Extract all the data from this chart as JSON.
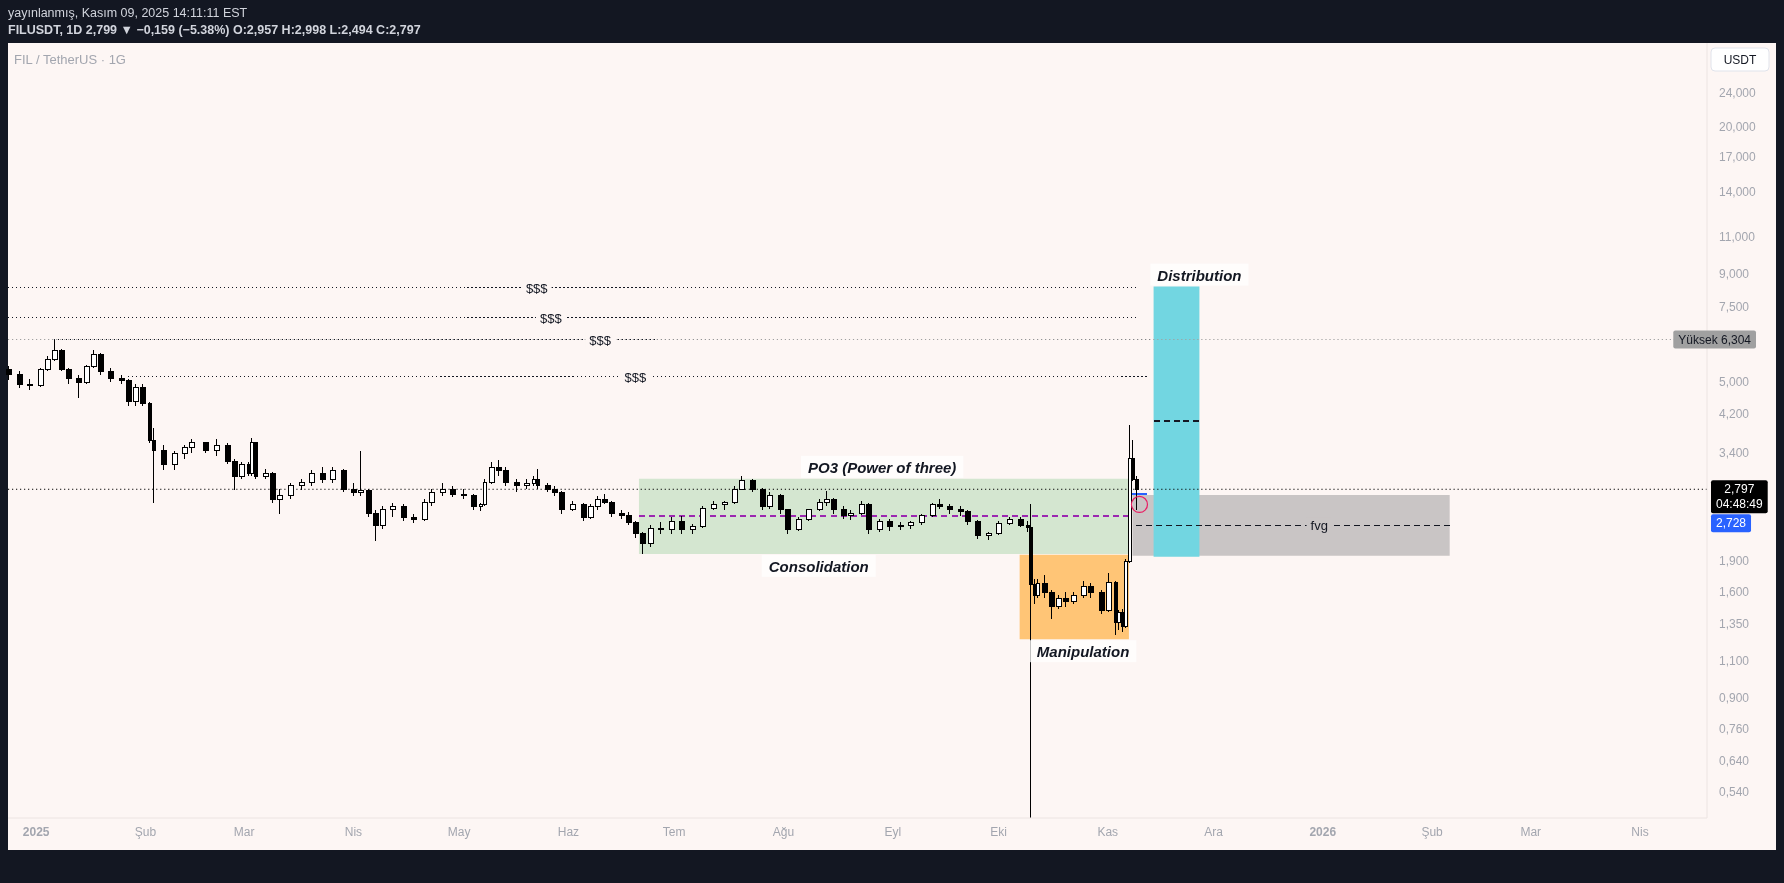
{
  "chart_data": {
    "type": "candlestick",
    "title": "FIL / TetherUS · 1G",
    "subtitle": "FILUSDT, 1D 2,799 ▼ −0,159 (−5.38%) O:2,957 H:2,998 L:2,494 C:2,797",
    "ylabel": "USDT",
    "color": "#000000",
    "log": true,
    "xlim": [
      "2024-12-24",
      "2026-04-20"
    ],
    "xticks": [
      {
        "value": "2025-01-01",
        "label": "2025"
      },
      {
        "value": "2025-02-01",
        "label": "Şub"
      },
      {
        "value": "2025-03-01",
        "label": "Mar"
      },
      {
        "value": "2025-04-01",
        "label": "Nis"
      },
      {
        "value": "2025-05-01",
        "label": "May"
      },
      {
        "value": "2025-06-01",
        "label": "Haz"
      },
      {
        "value": "2025-07-01",
        "label": "Tem"
      },
      {
        "value": "2025-08-01",
        "label": "Ağu"
      },
      {
        "value": "2025-09-01",
        "label": "Eyl"
      },
      {
        "value": "2025-10-01",
        "label": "Eki"
      },
      {
        "value": "2025-11-01",
        "label": "Kas"
      },
      {
        "value": "2025-12-01",
        "label": "Ara"
      },
      {
        "value": "2026-01-01",
        "label": "2026"
      },
      {
        "value": "2026-02-01",
        "label": "Şub"
      },
      {
        "value": "2026-03-01",
        "label": "Mar"
      },
      {
        "value": "2026-04-01",
        "label": "Nis"
      }
    ],
    "ylim": [
      0.47,
      31.5
    ],
    "yticks": [
      {
        "value": 0.54,
        "label": "0,540"
      },
      {
        "value": 0.64,
        "label": "0,640"
      },
      {
        "value": 0.76,
        "label": "0,760"
      },
      {
        "value": 0.9,
        "label": "0,900"
      },
      {
        "value": 1.1,
        "label": "1,100"
      },
      {
        "value": 1.35,
        "label": "1,350"
      },
      {
        "value": 1.6,
        "label": "1,600"
      },
      {
        "value": 1.9,
        "label": "1,900"
      },
      {
        "value": 3.4,
        "label": "3,400"
      },
      {
        "value": 4.2,
        "label": "4,200"
      },
      {
        "value": 5,
        "label": "5,000"
      },
      {
        "value": 7.5,
        "label": "7,500"
      },
      {
        "value": 9,
        "label": "9,000"
      },
      {
        "value": 11,
        "label": "11,000"
      },
      {
        "value": 14,
        "label": "14,000"
      },
      {
        "value": 17,
        "label": "17,000"
      },
      {
        "value": 20,
        "label": "20,000"
      },
      {
        "value": 24,
        "label": "24,000"
      }
    ],
    "x": [
      "2024-12-24",
      "2024-12-27",
      "2024-12-30",
      "2025-01-02",
      "2025-01-04",
      "2025-01-06",
      "2025-01-08",
      "2025-01-10",
      "2025-01-13",
      "2025-01-15",
      "2025-01-17",
      "2025-01-19",
      "2025-01-22",
      "2025-01-25",
      "2025-01-27",
      "2025-01-29",
      "2025-01-31",
      "2025-02-02",
      "2025-02-03",
      "2025-02-06",
      "2025-02-09",
      "2025-02-12",
      "2025-02-14",
      "2025-02-18",
      "2025-02-21",
      "2025-02-24",
      "2025-02-26",
      "2025-02-28",
      "2025-03-02",
      "2025-03-03",
      "2025-03-04",
      "2025-03-07",
      "2025-03-09",
      "2025-03-11",
      "2025-03-14",
      "2025-03-17",
      "2025-03-20",
      "2025-03-23",
      "2025-03-26",
      "2025-03-29",
      "2025-04-01",
      "2025-04-03",
      "2025-04-05",
      "2025-04-07",
      "2025-04-09",
      "2025-04-12",
      "2025-04-15",
      "2025-04-18",
      "2025-04-21",
      "2025-04-23",
      "2025-04-26",
      "2025-04-29",
      "2025-05-02",
      "2025-05-05",
      "2025-05-07",
      "2025-05-08",
      "2025-05-10",
      "2025-05-12",
      "2025-05-14",
      "2025-05-17",
      "2025-05-20",
      "2025-05-22",
      "2025-05-23",
      "2025-05-26",
      "2025-05-28",
      "2025-05-30",
      "2025-06-02",
      "2025-06-05",
      "2025-06-07",
      "2025-06-09",
      "2025-06-11",
      "2025-06-13",
      "2025-06-16",
      "2025-06-18",
      "2025-06-20",
      "2025-06-22",
      "2025-06-24",
      "2025-06-27",
      "2025-06-30",
      "2025-07-03",
      "2025-07-06",
      "2025-07-09",
      "2025-07-12",
      "2025-07-15",
      "2025-07-18",
      "2025-07-20",
      "2025-07-23",
      "2025-07-26",
      "2025-07-28",
      "2025-07-31",
      "2025-08-02",
      "2025-08-05",
      "2025-08-08",
      "2025-08-11",
      "2025-08-13",
      "2025-08-15",
      "2025-08-18",
      "2025-08-20",
      "2025-08-23",
      "2025-08-25",
      "2025-08-28",
      "2025-08-31",
      "2025-09-03",
      "2025-09-06",
      "2025-09-09",
      "2025-09-12",
      "2025-09-14",
      "2025-09-17",
      "2025-09-20",
      "2025-09-22",
      "2025-09-25",
      "2025-09-28",
      "2025-10-01",
      "2025-10-04",
      "2025-10-07",
      "2025-10-09",
      "2025-10-10",
      "2025-10-11",
      "2025-10-12",
      "2025-10-14",
      "2025-10-16",
      "2025-10-18",
      "2025-10-20",
      "2025-10-22",
      "2025-10-25",
      "2025-10-27",
      "2025-10-30",
      "2025-11-01",
      "2025-11-03",
      "2025-11-04",
      "2025-11-05",
      "2025-11-06",
      "2025-11-07",
      "2025-11-08",
      "2025-11-09"
    ],
    "ohlc": [
      [
        5.35,
        5.45,
        5.05,
        5.2
      ],
      [
        5.2,
        5.3,
        4.85,
        4.95
      ],
      [
        4.95,
        5.1,
        4.8,
        4.9
      ],
      [
        4.9,
        5.4,
        4.88,
        5.35
      ],
      [
        5.35,
        5.75,
        5.3,
        5.65
      ],
      [
        5.65,
        6.304,
        5.6,
        5.95
      ],
      [
        5.95,
        6.0,
        5.3,
        5.35
      ],
      [
        5.35,
        5.4,
        4.95,
        5.1
      ],
      [
        5.1,
        5.2,
        4.6,
        5.0
      ],
      [
        5.0,
        5.5,
        4.95,
        5.45
      ],
      [
        5.45,
        5.95,
        5.4,
        5.8
      ],
      [
        5.8,
        5.85,
        5.2,
        5.3
      ],
      [
        5.3,
        5.4,
        5.0,
        5.1
      ],
      [
        5.1,
        5.2,
        4.95,
        5.05
      ],
      [
        5.05,
        5.1,
        4.4,
        4.5
      ],
      [
        4.5,
        4.95,
        4.4,
        4.85
      ],
      [
        4.85,
        4.95,
        4.4,
        4.45
      ],
      [
        4.45,
        4.5,
        3.6,
        3.65
      ],
      [
        3.65,
        3.9,
        2.6,
        3.45
      ],
      [
        3.45,
        3.55,
        3.1,
        3.2
      ],
      [
        3.2,
        3.45,
        3.1,
        3.4
      ],
      [
        3.4,
        3.55,
        3.3,
        3.5
      ],
      [
        3.5,
        3.67,
        3.4,
        3.6
      ],
      [
        3.6,
        3.62,
        3.4,
        3.45
      ],
      [
        3.45,
        3.67,
        3.35,
        3.55
      ],
      [
        3.55,
        3.6,
        3.2,
        3.25
      ],
      [
        3.25,
        3.3,
        2.78,
        3.0
      ],
      [
        3.0,
        3.25,
        2.95,
        3.2
      ],
      [
        3.2,
        3.25,
        3.0,
        3.05
      ],
      [
        3.05,
        3.7,
        3.0,
        3.6
      ],
      [
        3.6,
        3.62,
        2.95,
        3.0
      ],
      [
        3.0,
        3.12,
        2.95,
        3.05
      ],
      [
        3.05,
        3.08,
        2.6,
        2.65
      ],
      [
        2.65,
        2.8,
        2.45,
        2.7
      ],
      [
        2.7,
        2.9,
        2.65,
        2.85
      ],
      [
        2.85,
        2.95,
        2.78,
        2.9
      ],
      [
        2.9,
        3.1,
        2.85,
        3.05
      ],
      [
        3.05,
        3.15,
        2.9,
        2.95
      ],
      [
        2.95,
        3.15,
        2.9,
        3.1
      ],
      [
        3.1,
        3.12,
        2.75,
        2.8
      ],
      [
        2.8,
        2.9,
        2.7,
        2.75
      ],
      [
        2.75,
        3.44,
        2.7,
        2.78
      ],
      [
        2.78,
        2.8,
        2.4,
        2.45
      ],
      [
        2.45,
        2.5,
        2.11,
        2.3
      ],
      [
        2.3,
        2.55,
        2.25,
        2.5
      ],
      [
        2.5,
        2.6,
        2.4,
        2.55
      ],
      [
        2.55,
        2.58,
        2.35,
        2.4
      ],
      [
        2.4,
        2.45,
        2.33,
        2.38
      ],
      [
        2.38,
        2.65,
        2.35,
        2.6
      ],
      [
        2.6,
        2.8,
        2.55,
        2.75
      ],
      [
        2.75,
        2.9,
        2.7,
        2.8
      ],
      [
        2.8,
        2.85,
        2.68,
        2.72
      ],
      [
        2.72,
        2.8,
        2.65,
        2.7
      ],
      [
        2.7,
        2.72,
        2.5,
        2.55
      ],
      [
        2.55,
        2.6,
        2.48,
        2.58
      ],
      [
        2.58,
        2.95,
        2.55,
        2.9
      ],
      [
        2.9,
        3.25,
        2.88,
        3.15
      ],
      [
        3.15,
        3.27,
        3.0,
        3.1
      ],
      [
        3.1,
        3.15,
        2.85,
        2.9
      ],
      [
        2.9,
        2.95,
        2.75,
        2.85
      ],
      [
        2.85,
        2.95,
        2.8,
        2.88
      ],
      [
        2.88,
        3.0,
        2.85,
        2.95
      ],
      [
        2.95,
        3.12,
        2.8,
        2.85
      ],
      [
        2.85,
        2.9,
        2.75,
        2.8
      ],
      [
        2.8,
        2.85,
        2.7,
        2.75
      ],
      [
        2.75,
        2.77,
        2.45,
        2.5
      ],
      [
        2.5,
        2.62,
        2.48,
        2.58
      ],
      [
        2.58,
        2.6,
        2.35,
        2.4
      ],
      [
        2.4,
        2.58,
        2.38,
        2.55
      ],
      [
        2.55,
        2.7,
        2.5,
        2.65
      ],
      [
        2.65,
        2.73,
        2.58,
        2.6
      ],
      [
        2.6,
        2.62,
        2.4,
        2.45
      ],
      [
        2.45,
        2.5,
        2.38,
        2.43
      ],
      [
        2.43,
        2.47,
        2.3,
        2.33
      ],
      [
        2.33,
        2.36,
        2.15,
        2.2
      ],
      [
        2.2,
        2.22,
        1.97,
        2.08
      ],
      [
        2.08,
        2.3,
        2.05,
        2.26
      ],
      [
        2.26,
        2.34,
        2.19,
        2.25
      ],
      [
        2.25,
        2.4,
        2.2,
        2.35
      ],
      [
        2.35,
        2.42,
        2.2,
        2.25
      ],
      [
        2.25,
        2.32,
        2.2,
        2.28
      ],
      [
        2.28,
        2.55,
        2.27,
        2.52
      ],
      [
        2.52,
        2.62,
        2.5,
        2.58
      ],
      [
        2.58,
        2.62,
        2.5,
        2.6
      ],
      [
        2.6,
        2.85,
        2.58,
        2.8
      ],
      [
        2.8,
        3.01,
        2.78,
        2.93
      ],
      [
        2.93,
        2.96,
        2.75,
        2.8
      ],
      [
        2.8,
        2.82,
        2.5,
        2.55
      ],
      [
        2.55,
        2.75,
        2.52,
        2.7
      ],
      [
        2.7,
        2.72,
        2.45,
        2.5
      ],
      [
        2.5,
        2.52,
        2.2,
        2.25
      ],
      [
        2.25,
        2.4,
        2.23,
        2.38
      ],
      [
        2.38,
        2.52,
        2.35,
        2.5
      ],
      [
        2.5,
        2.65,
        2.48,
        2.6
      ],
      [
        2.6,
        2.77,
        2.55,
        2.65
      ],
      [
        2.65,
        2.67,
        2.45,
        2.5
      ],
      [
        2.5,
        2.55,
        2.38,
        2.42
      ],
      [
        2.42,
        2.5,
        2.37,
        2.45
      ],
      [
        2.45,
        2.62,
        2.43,
        2.58
      ],
      [
        2.58,
        2.6,
        2.2,
        2.25
      ],
      [
        2.25,
        2.38,
        2.22,
        2.35
      ],
      [
        2.35,
        2.38,
        2.23,
        2.28
      ],
      [
        2.28,
        2.34,
        2.24,
        2.3
      ],
      [
        2.3,
        2.35,
        2.26,
        2.33
      ],
      [
        2.33,
        2.45,
        2.3,
        2.42
      ],
      [
        2.42,
        2.6,
        2.4,
        2.57
      ],
      [
        2.57,
        2.65,
        2.52,
        2.55
      ],
      [
        2.55,
        2.58,
        2.45,
        2.5
      ],
      [
        2.5,
        2.55,
        2.42,
        2.48
      ],
      [
        2.48,
        2.5,
        2.3,
        2.35
      ],
      [
        2.35,
        2.37,
        2.14,
        2.18
      ],
      [
        2.18,
        2.22,
        2.12,
        2.2
      ],
      [
        2.2,
        2.35,
        2.18,
        2.32
      ],
      [
        2.32,
        2.4,
        2.3,
        2.37
      ],
      [
        2.37,
        2.4,
        2.28,
        2.3
      ],
      [
        2.3,
        2.35,
        2.22,
        2.27
      ],
      [
        2.27,
        2.58,
        0.47,
        1.67
      ],
      [
        1.67,
        1.72,
        1.5,
        1.57
      ],
      [
        1.57,
        1.72,
        1.55,
        1.68
      ],
      [
        1.68,
        1.76,
        1.55,
        1.6
      ],
      [
        1.6,
        1.62,
        1.38,
        1.48
      ],
      [
        1.48,
        1.58,
        1.46,
        1.55
      ],
      [
        1.55,
        1.6,
        1.48,
        1.52
      ],
      [
        1.52,
        1.6,
        1.5,
        1.57
      ],
      [
        1.57,
        1.7,
        1.55,
        1.65
      ],
      [
        1.65,
        1.68,
        1.55,
        1.6
      ],
      [
        1.6,
        1.62,
        1.42,
        1.45
      ],
      [
        1.45,
        1.78,
        1.44,
        1.69
      ],
      [
        1.69,
        1.7,
        1.27,
        1.36
      ],
      [
        1.36,
        1.45,
        1.3,
        1.43
      ],
      [
        1.43,
        1.46,
        1.29,
        1.33
      ],
      [
        1.33,
        1.92,
        1.32,
        1.89
      ],
      [
        1.89,
        3.96,
        1.87,
        3.3
      ],
      [
        3.3,
        3.66,
        2.92,
        2.957
      ],
      [
        2.957,
        2.998,
        2.494,
        2.797
      ]
    ],
    "series": [
      {
        "type": "line",
        "color": "#d4e6d0",
        "x": [
          "2025-06-21",
          "2025-11-07"
        ],
        "values": [
          null,
          null
        ],
        "lower": [
          1.97,
          1.97
        ],
        "upper": [
          2.96,
          2.96
        ]
      },
      {
        "type": "line",
        "color": "#ffc576",
        "x": [
          "2025-10-07",
          "2025-11-07"
        ],
        "values": [
          null,
          null
        ],
        "lower": [
          1.24,
          1.24
        ],
        "upper": [
          1.96,
          1.96
        ]
      },
      {
        "type": "line",
        "color": "#c9c5c5",
        "x": [
          "2025-11-08",
          "2026-02-06"
        ],
        "values": [
          null,
          null
        ],
        "lower": [
          1.95,
          1.95
        ],
        "upper": [
          2.71,
          2.71
        ]
      },
      {
        "type": "line",
        "color": "#72d6e1",
        "x": [
          "2025-11-14",
          "2025-11-27"
        ],
        "values": [
          null,
          null
        ],
        "lower": [
          1.94,
          1.94
        ],
        "upper": [
          8.4,
          8.4
        ]
      },
      {
        "type": "line",
        "color": "#9c27b0",
        "line_style": "dashed",
        "x": [
          "2025-06-21",
          "2025-11-07"
        ],
        "values": [
          2.42,
          2.42
        ]
      },
      {
        "type": "line",
        "color": "#131722",
        "line_style": "dashed",
        "x": [
          "2025-11-09",
          "2026-02-06"
        ],
        "values": [
          2.3,
          2.3
        ]
      },
      {
        "type": "line",
        "color": "#131722",
        "line_style": "dashed",
        "x": [
          "2025-11-14",
          "2025-11-27"
        ],
        "values": [
          4.05,
          4.05
        ]
      },
      {
        "type": "line",
        "color": "#131722",
        "line_style": "dotted",
        "x": [
          "2024-12-24",
          "2025-11-09"
        ],
        "values": [
          8.35,
          8.35
        ]
      },
      {
        "type": "line",
        "color": "#131722",
        "line_style": "dotted",
        "x": [
          "2024-12-24",
          "2025-11-09"
        ],
        "values": [
          7.1,
          7.1
        ]
      },
      {
        "type": "line",
        "color": "#131722",
        "line_style": "dotted",
        "x": [
          "2025-01-06",
          "2025-11-13"
        ],
        "values": [
          6.3,
          6.3
        ]
      },
      {
        "type": "line",
        "color": "#131722",
        "line_style": "dotted",
        "x": [
          "2025-01-27",
          "2025-11-12"
        ],
        "values": [
          5.15,
          5.15
        ]
      },
      {
        "type": "line",
        "color": "#2962ff",
        "x": [
          "2025-11-08",
          "2025-11-12"
        ],
        "values": [
          2.728,
          2.728
        ]
      }
    ],
    "ref_lines": [
      {
        "axis": "y",
        "value": 6.304,
        "label": "Yüksek 6,304",
        "color": "#a0a0a0",
        "line_style": "dotted"
      },
      {
        "axis": "y",
        "value": 2.797,
        "label": "2,797\n04:48:49",
        "color": "#000000",
        "line_style": "dotted"
      }
    ],
    "annotations": [
      "yayınlanmış, Kasım 09, 2025 14:11:11 EST",
      {
        "text": "$$$",
        "x": "2025-05-23",
        "y": 8.35
      },
      {
        "text": "$$$",
        "x": "2025-05-27",
        "y": 7.1
      },
      {
        "text": "$$$",
        "x": "2025-06-10",
        "y": 6.3
      },
      {
        "text": "$$$",
        "x": "2025-06-20",
        "y": 5.15
      },
      {
        "text": "PO3 (Power of three)",
        "x": "2025-08-29",
        "y": 2.96
      },
      {
        "text": "Consolidation",
        "x": "2025-08-11",
        "y": 1.97
      },
      {
        "text": "Manipulation",
        "x": "2025-10-25",
        "y": 1.24
      },
      {
        "text": "Distribution",
        "x": "2025-11-27",
        "y": 8.4
      },
      {
        "text": "fvg",
        "x": "2025-12-31",
        "y": 2.3
      },
      "2,728"
    ]
  }
}
